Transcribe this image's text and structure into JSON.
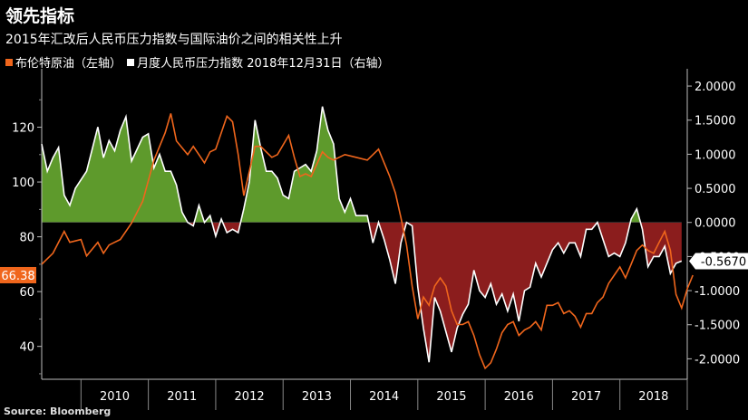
{
  "chart_data": {
    "type": "line",
    "title": "领先指标",
    "subtitle": "2015年汇改后人民币压力指数与国际油价之间的相关性上升",
    "source": "Source: Bloomberg",
    "x_labels": [
      "2010",
      "2011",
      "2012",
      "2013",
      "2014",
      "2015",
      "2016",
      "2017",
      "2018"
    ],
    "x_range": [
      "2009-06",
      "2019-01"
    ],
    "left_axis": {
      "ticks": [
        40,
        60,
        80,
        100,
        120
      ],
      "range": [
        28,
        140
      ]
    },
    "right_axis": {
      "ticks": [
        "2.0000",
        "1.5000",
        "1.0000",
        "0.5000",
        "0.0000",
        "-0.5000",
        "-1.0000",
        "-1.5000",
        "-2.0000"
      ],
      "range": [
        -2.3,
        2.2
      ]
    },
    "series": [
      {
        "name": "布伦特原油（左轴）",
        "axis": "left",
        "color": "#f0661c",
        "current_label": "66.38",
        "points": [
          [
            "2009-06",
            70
          ],
          [
            "2009-08",
            74
          ],
          [
            "2009-10",
            82
          ],
          [
            "2009-11",
            78
          ],
          [
            "2010-01",
            79
          ],
          [
            "2010-02",
            73
          ],
          [
            "2010-04",
            78
          ],
          [
            "2010-05",
            74
          ],
          [
            "2010-06",
            77
          ],
          [
            "2010-08",
            79
          ],
          [
            "2010-10",
            85
          ],
          [
            "2010-12",
            93
          ],
          [
            "2011-02",
            108
          ],
          [
            "2011-04",
            118
          ],
          [
            "2011-05",
            125
          ],
          [
            "2011-06",
            115
          ],
          [
            "2011-08",
            110
          ],
          [
            "2011-09",
            113
          ],
          [
            "2011-10",
            110
          ],
          [
            "2011-11",
            107
          ],
          [
            "2011-12",
            111
          ],
          [
            "2012-01",
            112
          ],
          [
            "2012-03",
            124
          ],
          [
            "2012-04",
            122
          ],
          [
            "2012-05",
            110
          ],
          [
            "2012-06",
            95
          ],
          [
            "2012-08",
            113
          ],
          [
            "2012-09",
            113
          ],
          [
            "2012-10",
            111
          ],
          [
            "2012-11",
            109
          ],
          [
            "2012-12",
            110
          ],
          [
            "2013-02",
            117
          ],
          [
            "2013-03",
            109
          ],
          [
            "2013-04",
            102
          ],
          [
            "2013-05",
            103
          ],
          [
            "2013-06",
            102
          ],
          [
            "2013-08",
            111
          ],
          [
            "2013-09",
            109
          ],
          [
            "2013-10",
            108
          ],
          [
            "2013-11",
            109
          ],
          [
            "2013-12",
            110
          ],
          [
            "2014-02",
            109
          ],
          [
            "2014-04",
            108
          ],
          [
            "2014-06",
            112
          ],
          [
            "2014-07",
            107
          ],
          [
            "2014-08",
            102
          ],
          [
            "2014-09",
            96
          ],
          [
            "2014-10",
            87
          ],
          [
            "2014-11",
            77
          ],
          [
            "2014-12",
            62
          ],
          [
            "2015-01",
            50
          ],
          [
            "2015-02",
            58
          ],
          [
            "2015-03",
            55
          ],
          [
            "2015-04",
            62
          ],
          [
            "2015-05",
            65
          ],
          [
            "2015-06",
            62
          ],
          [
            "2015-07",
            53
          ],
          [
            "2015-08",
            48
          ],
          [
            "2015-09",
            48
          ],
          [
            "2015-10",
            49
          ],
          [
            "2015-11",
            44
          ],
          [
            "2015-12",
            37
          ],
          [
            "2016-01",
            32
          ],
          [
            "2016-02",
            34
          ],
          [
            "2016-03",
            39
          ],
          [
            "2016-04",
            45
          ],
          [
            "2016-05",
            48
          ],
          [
            "2016-06",
            49
          ],
          [
            "2016-07",
            44
          ],
          [
            "2016-08",
            46
          ],
          [
            "2016-09",
            47
          ],
          [
            "2016-10",
            49
          ],
          [
            "2016-11",
            46
          ],
          [
            "2016-12",
            55
          ],
          [
            "2017-01",
            55
          ],
          [
            "2017-02",
            56
          ],
          [
            "2017-03",
            52
          ],
          [
            "2017-04",
            53
          ],
          [
            "2017-05",
            51
          ],
          [
            "2017-06",
            47
          ],
          [
            "2017-07",
            52
          ],
          [
            "2017-08",
            52
          ],
          [
            "2017-09",
            56
          ],
          [
            "2017-10",
            58
          ],
          [
            "2017-11",
            63
          ],
          [
            "2017-12",
            66
          ],
          [
            "2018-01",
            69
          ],
          [
            "2018-02",
            65
          ],
          [
            "2018-03",
            70
          ],
          [
            "2018-04",
            75
          ],
          [
            "2018-05",
            77
          ],
          [
            "2018-06",
            75
          ],
          [
            "2018-07",
            74
          ],
          [
            "2018-08",
            78
          ],
          [
            "2018-09",
            82
          ],
          [
            "2018-10",
            75
          ],
          [
            "2018-11",
            59
          ],
          [
            "2018-12",
            54
          ],
          [
            "2019-01",
            61
          ],
          [
            "2019-02",
            66
          ]
        ]
      },
      {
        "name": "月度人民币压力指数 2018年12月31日（右轴）",
        "axis": "right",
        "color": "#ffffff",
        "current_label": "-0.5670",
        "points": [
          [
            "2009-06",
            1.15
          ],
          [
            "2009-07",
            0.75
          ],
          [
            "2009-08",
            0.95
          ],
          [
            "2009-09",
            1.1
          ],
          [
            "2009-10",
            0.4
          ],
          [
            "2009-11",
            0.25
          ],
          [
            "2009-12",
            0.5
          ],
          [
            "2010-02",
            0.75
          ],
          [
            "2010-04",
            1.4
          ],
          [
            "2010-05",
            0.95
          ],
          [
            "2010-06",
            1.2
          ],
          [
            "2010-07",
            1.05
          ],
          [
            "2010-08",
            1.35
          ],
          [
            "2010-09",
            1.55
          ],
          [
            "2010-10",
            0.9
          ],
          [
            "2010-12",
            1.25
          ],
          [
            "2011-01",
            1.3
          ],
          [
            "2011-02",
            0.8
          ],
          [
            "2011-03",
            1.0
          ],
          [
            "2011-04",
            0.75
          ],
          [
            "2011-05",
            0.75
          ],
          [
            "2011-06",
            0.55
          ],
          [
            "2011-07",
            0.15
          ],
          [
            "2011-08",
            0.0
          ],
          [
            "2011-09",
            -0.05
          ],
          [
            "2011-10",
            0.25
          ],
          [
            "2011-11",
            0.0
          ],
          [
            "2011-12",
            0.1
          ],
          [
            "2012-01",
            -0.2
          ],
          [
            "2012-02",
            0.05
          ],
          [
            "2012-03",
            -0.15
          ],
          [
            "2012-04",
            -0.1
          ],
          [
            "2012-05",
            -0.15
          ],
          [
            "2012-06",
            0.2
          ],
          [
            "2012-07",
            0.6
          ],
          [
            "2012-08",
            1.5
          ],
          [
            "2012-09",
            1.1
          ],
          [
            "2012-10",
            0.75
          ],
          [
            "2012-11",
            0.75
          ],
          [
            "2012-12",
            0.65
          ],
          [
            "2013-01",
            0.4
          ],
          [
            "2013-02",
            0.35
          ],
          [
            "2013-03",
            0.75
          ],
          [
            "2013-04",
            0.8
          ],
          [
            "2013-05",
            0.85
          ],
          [
            "2013-06",
            0.75
          ],
          [
            "2013-07",
            1.05
          ],
          [
            "2013-08",
            1.7
          ],
          [
            "2013-09",
            1.35
          ],
          [
            "2013-10",
            1.15
          ],
          [
            "2013-11",
            0.35
          ],
          [
            "2013-12",
            0.15
          ],
          [
            "2014-01",
            0.35
          ],
          [
            "2014-02",
            0.1
          ],
          [
            "2014-03",
            0.1
          ],
          [
            "2014-04",
            0.1
          ],
          [
            "2014-05",
            -0.3
          ],
          [
            "2014-06",
            0.0
          ],
          [
            "2014-07",
            -0.25
          ],
          [
            "2014-08",
            -0.55
          ],
          [
            "2014-09",
            -0.9
          ],
          [
            "2014-10",
            -0.3
          ],
          [
            "2014-11",
            0.0
          ],
          [
            "2014-12",
            -0.05
          ],
          [
            "2015-01",
            -0.95
          ],
          [
            "2015-02",
            -1.55
          ],
          [
            "2015-03",
            -2.05
          ],
          [
            "2015-04",
            -1.1
          ],
          [
            "2015-05",
            -1.3
          ],
          [
            "2015-06",
            -1.6
          ],
          [
            "2015-07",
            -1.9
          ],
          [
            "2015-08",
            -1.55
          ],
          [
            "2015-09",
            -1.35
          ],
          [
            "2015-10",
            -1.2
          ],
          [
            "2015-11",
            -0.7
          ],
          [
            "2015-12",
            -1.0
          ],
          [
            "2016-01",
            -1.1
          ],
          [
            "2016-02",
            -0.9
          ],
          [
            "2016-03",
            -1.2
          ],
          [
            "2016-04",
            -1.05
          ],
          [
            "2016-05",
            -1.3
          ],
          [
            "2016-06",
            -1.05
          ],
          [
            "2016-07",
            -1.45
          ],
          [
            "2016-08",
            -1.0
          ],
          [
            "2016-09",
            -0.95
          ],
          [
            "2016-10",
            -0.6
          ],
          [
            "2016-11",
            -0.8
          ],
          [
            "2016-12",
            -0.6
          ],
          [
            "2017-01",
            -0.4
          ],
          [
            "2017-02",
            -0.3
          ],
          [
            "2017-03",
            -0.45
          ],
          [
            "2017-04",
            -0.3
          ],
          [
            "2017-05",
            -0.3
          ],
          [
            "2017-06",
            -0.5
          ],
          [
            "2017-07",
            -0.1
          ],
          [
            "2017-08",
            -0.1
          ],
          [
            "2017-09",
            0.0
          ],
          [
            "2017-10",
            -0.25
          ],
          [
            "2017-11",
            -0.5
          ],
          [
            "2017-12",
            -0.45
          ],
          [
            "2018-01",
            -0.5
          ],
          [
            "2018-02",
            -0.3
          ],
          [
            "2018-03",
            0.05
          ],
          [
            "2018-04",
            0.2
          ],
          [
            "2018-05",
            -0.1
          ],
          [
            "2018-06",
            -0.65
          ],
          [
            "2018-07",
            -0.5
          ],
          [
            "2018-08",
            -0.5
          ],
          [
            "2018-09",
            -0.35
          ],
          [
            "2018-10",
            -0.75
          ],
          [
            "2018-11",
            -0.6
          ],
          [
            "2018-12",
            -0.567
          ]
        ]
      }
    ],
    "fill": {
      "positive_color": "#5e9a2c",
      "negative_color": "#8b1d1d"
    },
    "grid": false
  }
}
